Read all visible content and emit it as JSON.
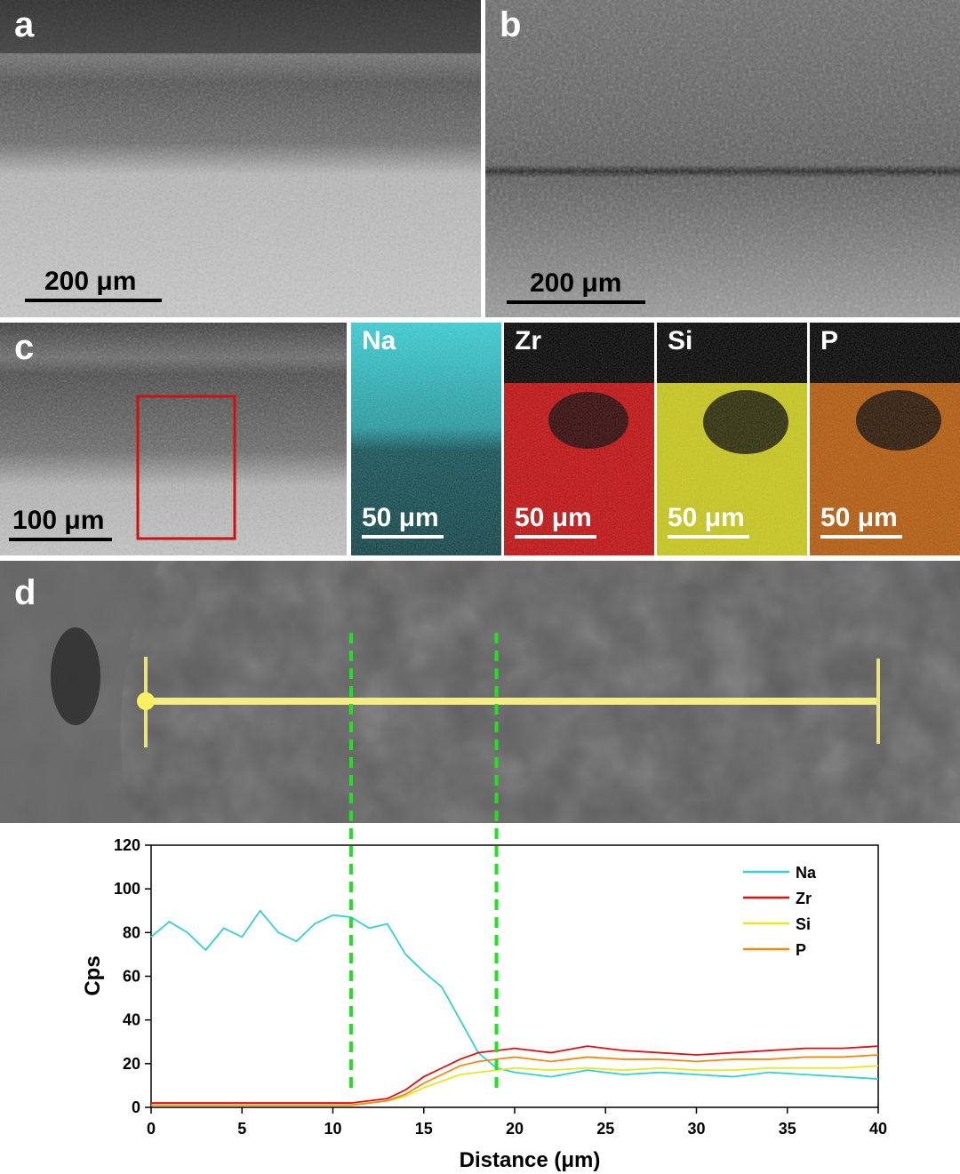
{
  "panels": {
    "a": {
      "label": "a",
      "scalebar": "200 μm"
    },
    "b": {
      "label": "b",
      "scalebar": "200 μm"
    },
    "c": {
      "label": "c",
      "scalebar": "100 μm"
    },
    "d": {
      "label": "d"
    }
  },
  "eds_maps": [
    {
      "element": "Na",
      "scalebar": "50 μm",
      "color": "#33d0d6"
    },
    {
      "element": "Zr",
      "scalebar": "50 μm",
      "color": "#e01010"
    },
    {
      "element": "Si",
      "scalebar": "50 μm",
      "color": "#d8d820"
    },
    {
      "element": "P",
      "scalebar": "50 μm",
      "color": "#e07a10"
    }
  ],
  "chart_data": {
    "type": "line",
    "xlabel": "Distance (μm)",
    "ylabel": "Cps",
    "xlim": [
      0,
      40
    ],
    "ylim": [
      0,
      120
    ],
    "xticks": [
      0,
      5,
      10,
      15,
      20,
      25,
      30,
      35,
      40
    ],
    "yticks": [
      0,
      20,
      40,
      60,
      80,
      100,
      120
    ],
    "legend_position": "top-right",
    "vlines": [
      11,
      19
    ],
    "vline_color": "#22e022",
    "x": [
      0,
      1,
      2,
      3,
      4,
      5,
      6,
      7,
      8,
      9,
      10,
      11,
      12,
      13,
      14,
      15,
      16,
      17,
      18,
      19,
      20,
      22,
      24,
      26,
      28,
      30,
      32,
      34,
      36,
      38,
      40
    ],
    "series": [
      {
        "name": "Na",
        "color": "#33d0d6",
        "values": [
          78,
          85,
          80,
          72,
          82,
          78,
          90,
          80,
          76,
          84,
          88,
          87,
          82,
          84,
          70,
          62,
          55,
          40,
          25,
          18,
          16,
          14,
          17,
          15,
          16,
          15,
          14,
          16,
          15,
          14,
          13
        ]
      },
      {
        "name": "Zr",
        "color": "#e01010",
        "values": [
          2,
          2,
          2,
          2,
          2,
          2,
          2,
          2,
          2,
          2,
          2,
          2,
          3,
          4,
          8,
          14,
          18,
          22,
          25,
          26,
          27,
          25,
          28,
          26,
          25,
          24,
          25,
          26,
          27,
          27,
          28
        ]
      },
      {
        "name": "Si",
        "color": "#e8e820",
        "values": [
          1,
          1,
          1,
          1,
          1,
          1,
          1,
          1,
          1,
          1,
          1,
          1,
          2,
          3,
          5,
          9,
          12,
          15,
          16,
          17,
          18,
          17,
          18,
          17,
          18,
          17,
          17,
          18,
          18,
          18,
          19
        ]
      },
      {
        "name": "P",
        "color": "#f08a10",
        "values": [
          1,
          1,
          1,
          1,
          1,
          1,
          1,
          1,
          1,
          1,
          1,
          1,
          2,
          3,
          6,
          11,
          15,
          19,
          21,
          22,
          23,
          21,
          23,
          22,
          22,
          21,
          22,
          22,
          23,
          23,
          24
        ]
      }
    ]
  }
}
